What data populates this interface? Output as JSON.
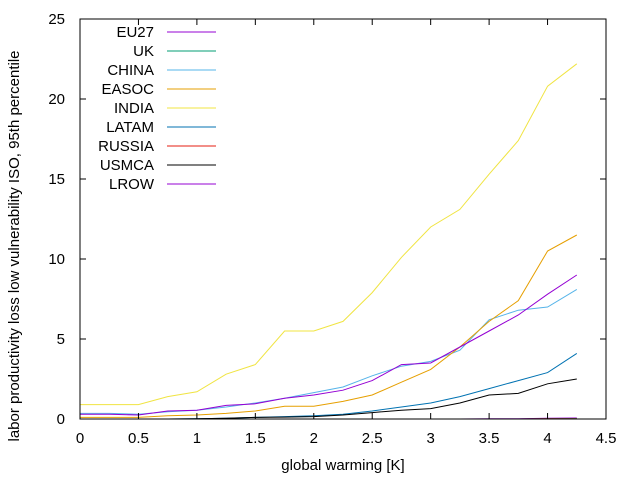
{
  "chart_data": {
    "type": "line",
    "title": "",
    "xlabel": "global warming [K]",
    "ylabel": "labor productivity loss low vulnerability ISO, 95th percentile",
    "xlim": [
      0,
      4.5
    ],
    "ylim": [
      0,
      25
    ],
    "xticks": [
      0,
      0.5,
      1,
      1.5,
      2,
      2.5,
      3,
      3.5,
      4,
      4.5
    ],
    "xtick_labels": [
      "0",
      "0.5",
      "1",
      "1.5",
      "2",
      "2.5",
      "3",
      "3.5",
      "4",
      "4.5"
    ],
    "yticks": [
      0,
      5,
      10,
      15,
      20,
      25
    ],
    "ytick_labels": [
      "0",
      "5",
      "10",
      "15",
      "20",
      "25"
    ],
    "grid": false,
    "legend_position": "top-left",
    "x": [
      0,
      0.25,
      0.5,
      0.75,
      1,
      1.25,
      1.5,
      1.75,
      2,
      2.25,
      2.5,
      2.75,
      3,
      3.25,
      3.5,
      3.75,
      4,
      4.25
    ],
    "series": [
      {
        "name": "EU27",
        "color": "#9400d3",
        "values": [
          0.0,
          0.0,
          0.0,
          0.0,
          0.0,
          0.0,
          0.0,
          0.0,
          0.0,
          0.0,
          0.0,
          0.0,
          0.0,
          0.0,
          0.02,
          0.02,
          0.05,
          0.06
        ]
      },
      {
        "name": "UK",
        "color": "#009e73",
        "values": [
          0.0,
          0.0,
          0.0,
          0.0,
          0.0,
          0.0,
          0.0,
          0.0,
          0.0,
          0.0,
          0.0,
          0.0,
          0.0,
          0.0,
          0.0,
          0.0,
          0.02,
          0.03
        ]
      },
      {
        "name": "CHINA",
        "color": "#56b4e9",
        "values": [
          0.35,
          0.35,
          0.3,
          0.45,
          0.55,
          0.75,
          1.0,
          1.3,
          1.65,
          2.0,
          2.7,
          3.3,
          3.6,
          4.3,
          6.2,
          6.8,
          7.0,
          8.1
        ]
      },
      {
        "name": "EASOC",
        "color": "#e69f00",
        "values": [
          0.1,
          0.1,
          0.1,
          0.2,
          0.25,
          0.35,
          0.5,
          0.8,
          0.8,
          1.1,
          1.5,
          2.3,
          3.1,
          4.5,
          6.1,
          7.4,
          10.5,
          11.5
        ]
      },
      {
        "name": "INDIA",
        "color": "#f0e442",
        "values": [
          0.9,
          0.9,
          0.9,
          1.4,
          1.7,
          2.8,
          3.4,
          5.5,
          5.5,
          6.1,
          7.9,
          10.1,
          12.0,
          13.1,
          15.3,
          17.4,
          20.8,
          22.2
        ]
      },
      {
        "name": "LATAM",
        "color": "#0072b2",
        "values": [
          0.0,
          0.0,
          0.0,
          0.0,
          0.02,
          0.05,
          0.1,
          0.15,
          0.2,
          0.3,
          0.5,
          0.75,
          1.0,
          1.4,
          1.9,
          2.4,
          2.9,
          4.1
        ]
      },
      {
        "name": "RUSSIA",
        "color": "#e51e10",
        "values": [
          0.0,
          0.0,
          0.0,
          0.0,
          0.0,
          0.0,
          0.0,
          0.0,
          0.0,
          0.0,
          0.0,
          0.0,
          0.0,
          0.0,
          0.0,
          0.0,
          0.02,
          0.02
        ]
      },
      {
        "name": "USMCA",
        "color": "#000000",
        "values": [
          0.0,
          0.0,
          0.0,
          0.0,
          0.02,
          0.05,
          0.1,
          0.12,
          0.15,
          0.25,
          0.4,
          0.55,
          0.65,
          1.0,
          1.5,
          1.6,
          2.2,
          2.5
        ]
      },
      {
        "name": "LROW",
        "color": "#9400d3",
        "values": [
          0.3,
          0.3,
          0.25,
          0.5,
          0.55,
          0.85,
          0.95,
          1.3,
          1.5,
          1.8,
          2.4,
          3.4,
          3.5,
          4.5,
          5.5,
          6.5,
          7.8,
          9.0
        ]
      }
    ]
  }
}
